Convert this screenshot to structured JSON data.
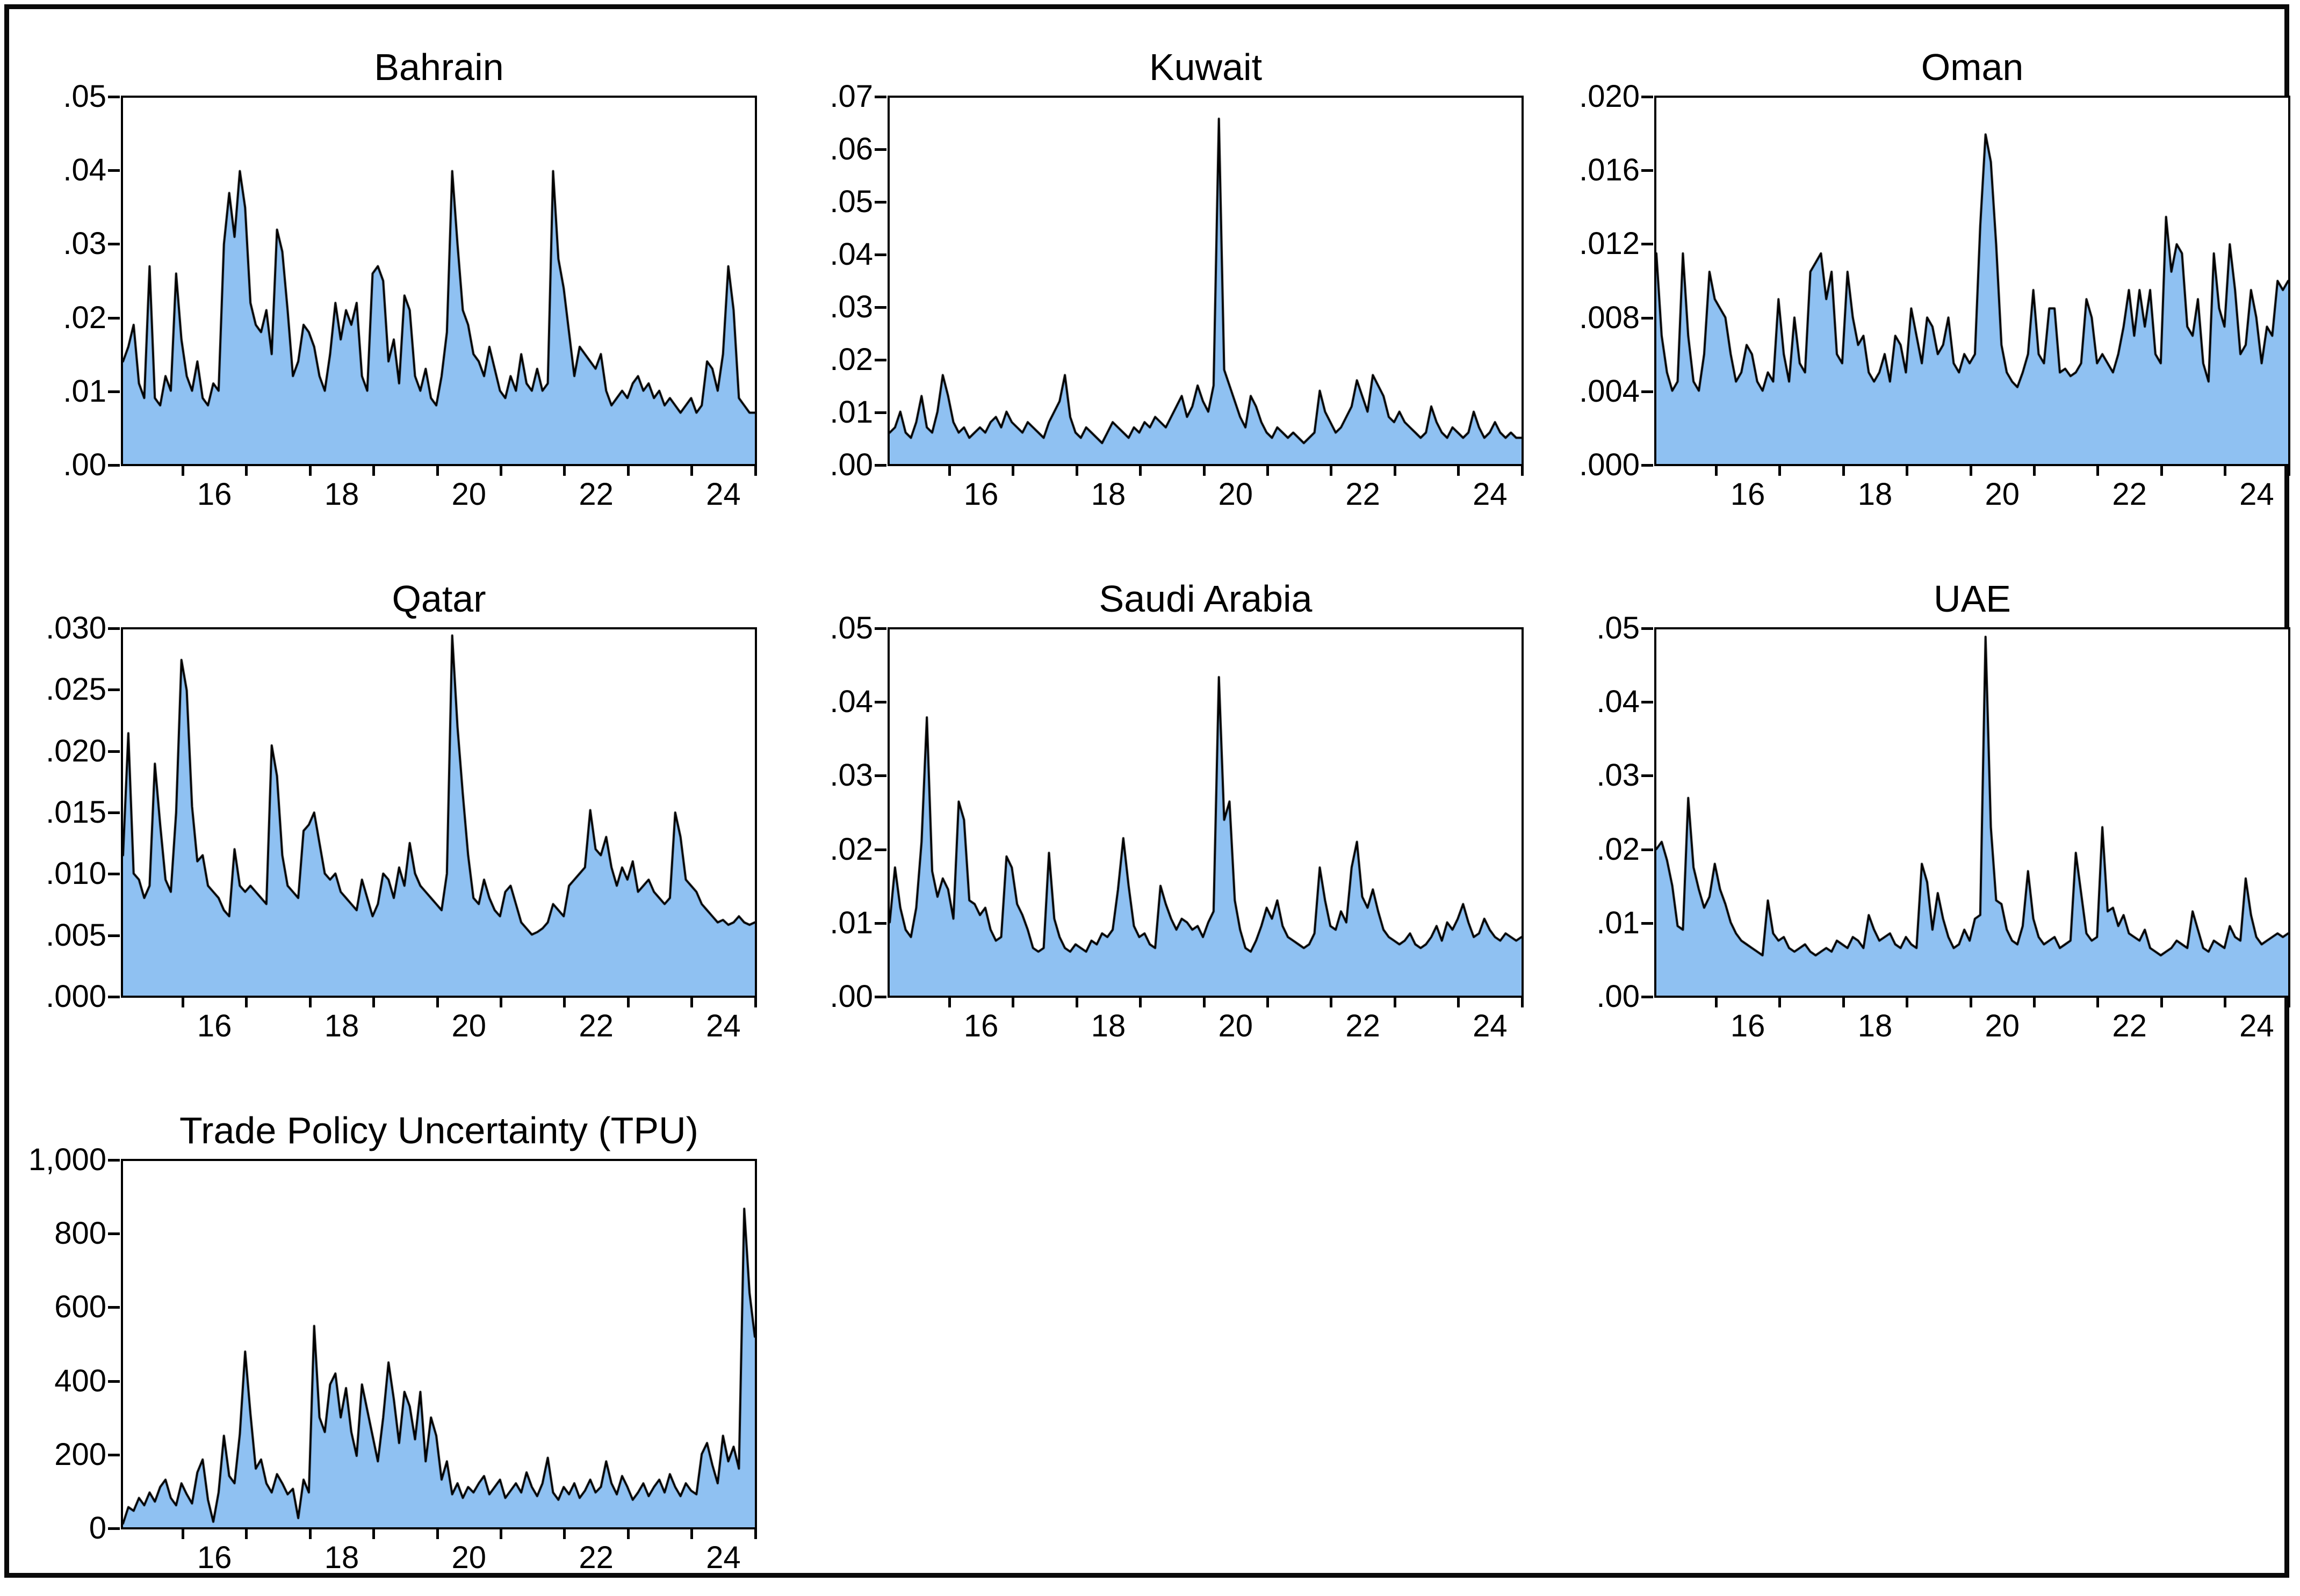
{
  "figure": {
    "kind": "eviews-style multi-panel area chart grid",
    "panel_titles": [
      "Bahrain",
      "Kuwait",
      "Oman",
      "Qatar",
      "Saudi Arabia",
      "UAE",
      "Trade Policy Uncertainty (TPU)"
    ]
  },
  "style": {
    "area_fill": "#8FC1F2",
    "series_line": "#000000",
    "frame_color": "#000000",
    "text_color": "#000000",
    "page_background": "#FFFFFF",
    "outer_border": "#0A0A0A"
  },
  "chart_data": [
    {
      "type": "area",
      "title": "Bahrain",
      "ylim": [
        0,
        0.05
      ],
      "y_tick_labels": [
        ".00",
        ".01",
        ".02",
        ".03",
        ".04",
        ".05"
      ],
      "x_tick_labels": [
        "16",
        "18",
        "20",
        "22",
        "24"
      ],
      "x_range": [
        2014.6,
        2024.5
      ],
      "grid": "off",
      "values": [
        0.014,
        0.016,
        0.019,
        0.011,
        0.009,
        0.027,
        0.009,
        0.008,
        0.012,
        0.01,
        0.026,
        0.017,
        0.012,
        0.01,
        0.014,
        0.009,
        0.008,
        0.011,
        0.01,
        0.03,
        0.037,
        0.031,
        0.04,
        0.035,
        0.022,
        0.019,
        0.018,
        0.021,
        0.015,
        0.032,
        0.029,
        0.021,
        0.012,
        0.014,
        0.019,
        0.018,
        0.016,
        0.012,
        0.01,
        0.015,
        0.022,
        0.017,
        0.021,
        0.019,
        0.022,
        0.012,
        0.01,
        0.026,
        0.027,
        0.025,
        0.014,
        0.017,
        0.011,
        0.023,
        0.021,
        0.012,
        0.01,
        0.013,
        0.009,
        0.008,
        0.012,
        0.018,
        0.04,
        0.03,
        0.021,
        0.019,
        0.015,
        0.014,
        0.012,
        0.016,
        0.013,
        0.01,
        0.009,
        0.012,
        0.01,
        0.015,
        0.011,
        0.01,
        0.013,
        0.01,
        0.011,
        0.04,
        0.028,
        0.024,
        0.018,
        0.012,
        0.016,
        0.015,
        0.014,
        0.013,
        0.015,
        0.01,
        0.008,
        0.009,
        0.01,
        0.009,
        0.011,
        0.012,
        0.01,
        0.011,
        0.009,
        0.01,
        0.008,
        0.009,
        0.008,
        0.007,
        0.008,
        0.009,
        0.007,
        0.008,
        0.014,
        0.013,
        0.01,
        0.015,
        0.027,
        0.021,
        0.009,
        0.008,
        0.007,
        0.007
      ]
    },
    {
      "type": "area",
      "title": "Kuwait",
      "ylim": [
        0,
        0.07
      ],
      "y_tick_labels": [
        ".00",
        ".01",
        ".02",
        ".03",
        ".04",
        ".05",
        ".06",
        ".07"
      ],
      "x_tick_labels": [
        "16",
        "18",
        "20",
        "22",
        "24"
      ],
      "x_range": [
        2014.6,
        2024.5
      ],
      "grid": "off",
      "values": [
        0.006,
        0.007,
        0.01,
        0.006,
        0.005,
        0.008,
        0.013,
        0.007,
        0.006,
        0.01,
        0.017,
        0.013,
        0.008,
        0.006,
        0.007,
        0.005,
        0.006,
        0.007,
        0.006,
        0.008,
        0.009,
        0.007,
        0.01,
        0.008,
        0.007,
        0.006,
        0.008,
        0.007,
        0.006,
        0.005,
        0.008,
        0.01,
        0.012,
        0.017,
        0.009,
        0.006,
        0.005,
        0.007,
        0.006,
        0.005,
        0.004,
        0.006,
        0.008,
        0.007,
        0.006,
        0.005,
        0.007,
        0.006,
        0.008,
        0.007,
        0.009,
        0.008,
        0.007,
        0.009,
        0.011,
        0.013,
        0.009,
        0.011,
        0.015,
        0.012,
        0.01,
        0.015,
        0.066,
        0.018,
        0.015,
        0.012,
        0.009,
        0.007,
        0.013,
        0.011,
        0.008,
        0.006,
        0.005,
        0.007,
        0.006,
        0.005,
        0.006,
        0.005,
        0.004,
        0.005,
        0.006,
        0.014,
        0.01,
        0.008,
        0.006,
        0.007,
        0.009,
        0.011,
        0.016,
        0.013,
        0.01,
        0.017,
        0.015,
        0.013,
        0.009,
        0.008,
        0.01,
        0.008,
        0.007,
        0.006,
        0.005,
        0.006,
        0.011,
        0.008,
        0.006,
        0.005,
        0.007,
        0.006,
        0.005,
        0.006,
        0.01,
        0.007,
        0.005,
        0.006,
        0.008,
        0.006,
        0.005,
        0.006,
        0.005,
        0.005
      ]
    },
    {
      "type": "area",
      "title": "Oman",
      "ylim": [
        0,
        0.02
      ],
      "y_tick_labels": [
        ".000",
        ".004",
        ".008",
        ".012",
        ".016",
        ".020"
      ],
      "x_tick_labels": [
        "16",
        "18",
        "20",
        "22",
        "24"
      ],
      "x_range": [
        2014.6,
        2024.5
      ],
      "grid": "off",
      "values": [
        0.0115,
        0.007,
        0.005,
        0.004,
        0.0045,
        0.0115,
        0.007,
        0.0045,
        0.004,
        0.006,
        0.0105,
        0.009,
        0.0085,
        0.008,
        0.006,
        0.0045,
        0.005,
        0.0065,
        0.006,
        0.0045,
        0.004,
        0.005,
        0.0045,
        0.009,
        0.006,
        0.0045,
        0.008,
        0.0055,
        0.005,
        0.0105,
        0.011,
        0.0115,
        0.009,
        0.0105,
        0.006,
        0.0055,
        0.0105,
        0.008,
        0.0065,
        0.007,
        0.005,
        0.0045,
        0.005,
        0.006,
        0.0045,
        0.007,
        0.0065,
        0.005,
        0.0085,
        0.007,
        0.0055,
        0.008,
        0.0075,
        0.006,
        0.0065,
        0.008,
        0.0055,
        0.005,
        0.006,
        0.0055,
        0.006,
        0.013,
        0.018,
        0.0165,
        0.012,
        0.0065,
        0.005,
        0.0045,
        0.0042,
        0.005,
        0.006,
        0.0095,
        0.006,
        0.0055,
        0.0085,
        0.0085,
        0.005,
        0.0052,
        0.0048,
        0.005,
        0.0055,
        0.009,
        0.008,
        0.0055,
        0.006,
        0.0055,
        0.005,
        0.006,
        0.0075,
        0.0095,
        0.007,
        0.0095,
        0.0075,
        0.0095,
        0.006,
        0.0055,
        0.0135,
        0.0105,
        0.012,
        0.0115,
        0.0075,
        0.007,
        0.009,
        0.0055,
        0.0045,
        0.0115,
        0.0085,
        0.0075,
        0.012,
        0.0095,
        0.006,
        0.0065,
        0.0095,
        0.008,
        0.0055,
        0.0075,
        0.007,
        0.01,
        0.0095,
        0.01
      ]
    },
    {
      "type": "area",
      "title": "Qatar",
      "ylim": [
        0,
        0.03
      ],
      "y_tick_labels": [
        ".000",
        ".005",
        ".010",
        ".015",
        ".020",
        ".025",
        ".030"
      ],
      "x_tick_labels": [
        "16",
        "18",
        "20",
        "22",
        "24"
      ],
      "x_range": [
        2014.6,
        2024.5
      ],
      "grid": "off",
      "values": [
        0.0115,
        0.0215,
        0.01,
        0.0095,
        0.008,
        0.009,
        0.019,
        0.014,
        0.0095,
        0.0085,
        0.015,
        0.0275,
        0.025,
        0.0155,
        0.011,
        0.0115,
        0.009,
        0.0085,
        0.008,
        0.007,
        0.0065,
        0.012,
        0.009,
        0.0085,
        0.009,
        0.0085,
        0.008,
        0.0075,
        0.0205,
        0.018,
        0.0115,
        0.009,
        0.0085,
        0.008,
        0.0135,
        0.014,
        0.015,
        0.0125,
        0.01,
        0.0095,
        0.01,
        0.0085,
        0.008,
        0.0075,
        0.007,
        0.0095,
        0.008,
        0.0065,
        0.0075,
        0.01,
        0.0095,
        0.008,
        0.0105,
        0.009,
        0.0125,
        0.01,
        0.009,
        0.0085,
        0.008,
        0.0075,
        0.007,
        0.01,
        0.0295,
        0.022,
        0.0165,
        0.0115,
        0.008,
        0.0075,
        0.0095,
        0.008,
        0.007,
        0.0065,
        0.0085,
        0.009,
        0.0075,
        0.006,
        0.0055,
        0.005,
        0.0052,
        0.0055,
        0.006,
        0.0075,
        0.007,
        0.0065,
        0.009,
        0.0095,
        0.01,
        0.0105,
        0.0152,
        0.012,
        0.0115,
        0.013,
        0.0105,
        0.009,
        0.0105,
        0.0095,
        0.011,
        0.0085,
        0.009,
        0.0095,
        0.0085,
        0.008,
        0.0075,
        0.008,
        0.015,
        0.013,
        0.0095,
        0.009,
        0.0085,
        0.0075,
        0.007,
        0.0065,
        0.006,
        0.0062,
        0.0058,
        0.006,
        0.0065,
        0.006,
        0.0058,
        0.006
      ]
    },
    {
      "type": "area",
      "title": "Saudi Arabia",
      "ylim": [
        0,
        0.05
      ],
      "y_tick_labels": [
        ".00",
        ".01",
        ".02",
        ".03",
        ".04",
        ".05"
      ],
      "x_tick_labels": [
        "16",
        "18",
        "20",
        "22",
        "24"
      ],
      "x_range": [
        2014.6,
        2024.5
      ],
      "grid": "off",
      "values": [
        0.01,
        0.0175,
        0.012,
        0.009,
        0.008,
        0.012,
        0.021,
        0.038,
        0.017,
        0.0135,
        0.016,
        0.0145,
        0.0105,
        0.0265,
        0.024,
        0.013,
        0.0125,
        0.011,
        0.012,
        0.009,
        0.0075,
        0.008,
        0.019,
        0.0175,
        0.0125,
        0.011,
        0.009,
        0.0065,
        0.006,
        0.0065,
        0.0195,
        0.0105,
        0.008,
        0.0065,
        0.006,
        0.007,
        0.0065,
        0.006,
        0.0075,
        0.007,
        0.0085,
        0.008,
        0.009,
        0.0145,
        0.0215,
        0.015,
        0.0095,
        0.008,
        0.0085,
        0.007,
        0.0065,
        0.015,
        0.0125,
        0.0105,
        0.009,
        0.0105,
        0.01,
        0.009,
        0.0095,
        0.008,
        0.01,
        0.0115,
        0.0435,
        0.024,
        0.0265,
        0.013,
        0.009,
        0.0065,
        0.006,
        0.0075,
        0.0095,
        0.012,
        0.0105,
        0.013,
        0.0095,
        0.008,
        0.0075,
        0.007,
        0.0065,
        0.007,
        0.0085,
        0.0175,
        0.013,
        0.0095,
        0.009,
        0.0115,
        0.01,
        0.0175,
        0.021,
        0.0135,
        0.012,
        0.0145,
        0.0115,
        0.009,
        0.008,
        0.0075,
        0.007,
        0.0075,
        0.0085,
        0.007,
        0.0065,
        0.007,
        0.008,
        0.0095,
        0.0075,
        0.01,
        0.009,
        0.0105,
        0.0125,
        0.01,
        0.008,
        0.0085,
        0.0105,
        0.009,
        0.008,
        0.0075,
        0.0085,
        0.008,
        0.0075,
        0.008
      ]
    },
    {
      "type": "area",
      "title": "UAE",
      "ylim": [
        0,
        0.05
      ],
      "y_tick_labels": [
        ".00",
        ".01",
        ".02",
        ".03",
        ".04",
        ".05"
      ],
      "x_tick_labels": [
        "16",
        "18",
        "20",
        "22",
        "24"
      ],
      "x_range": [
        2014.6,
        2024.5
      ],
      "grid": "off",
      "values": [
        0.02,
        0.021,
        0.0185,
        0.015,
        0.0095,
        0.009,
        0.027,
        0.0175,
        0.0145,
        0.012,
        0.0135,
        0.018,
        0.0145,
        0.0125,
        0.01,
        0.0085,
        0.0075,
        0.007,
        0.0065,
        0.006,
        0.0055,
        0.013,
        0.0085,
        0.0075,
        0.008,
        0.0065,
        0.006,
        0.0065,
        0.007,
        0.006,
        0.0055,
        0.006,
        0.0065,
        0.006,
        0.0075,
        0.007,
        0.0065,
        0.008,
        0.0075,
        0.0065,
        0.011,
        0.009,
        0.0075,
        0.008,
        0.0085,
        0.007,
        0.0065,
        0.008,
        0.007,
        0.0065,
        0.018,
        0.0155,
        0.009,
        0.014,
        0.0105,
        0.008,
        0.0065,
        0.007,
        0.009,
        0.0075,
        0.0105,
        0.011,
        0.049,
        0.023,
        0.013,
        0.0125,
        0.009,
        0.0075,
        0.007,
        0.0095,
        0.017,
        0.0105,
        0.008,
        0.007,
        0.0075,
        0.008,
        0.0065,
        0.007,
        0.0075,
        0.0195,
        0.014,
        0.0085,
        0.0075,
        0.008,
        0.023,
        0.0115,
        0.012,
        0.0095,
        0.011,
        0.0085,
        0.008,
        0.0075,
        0.009,
        0.0065,
        0.006,
        0.0055,
        0.006,
        0.0065,
        0.0075,
        0.007,
        0.0065,
        0.0115,
        0.009,
        0.0065,
        0.006,
        0.0075,
        0.007,
        0.0065,
        0.0095,
        0.008,
        0.0075,
        0.016,
        0.011,
        0.008,
        0.007,
        0.0075,
        0.008,
        0.0085,
        0.008,
        0.0085
      ]
    },
    {
      "type": "area",
      "title": "Trade Policy Uncertainty (TPU)",
      "ylim": [
        0,
        1000
      ],
      "y_tick_labels": [
        "0",
        "200",
        "400",
        "600",
        "800",
        "1,000"
      ],
      "x_tick_labels": [
        "16",
        "18",
        "20",
        "22",
        "24"
      ],
      "x_range": [
        2014.6,
        2024.5
      ],
      "grid": "off",
      "values": [
        10,
        55,
        45,
        80,
        60,
        95,
        70,
        110,
        130,
        80,
        60,
        120,
        90,
        65,
        150,
        185,
        75,
        15,
        95,
        250,
        140,
        120,
        255,
        480,
        310,
        160,
        185,
        120,
        95,
        145,
        120,
        90,
        105,
        25,
        130,
        95,
        550,
        300,
        260,
        390,
        420,
        300,
        380,
        260,
        195,
        390,
        320,
        250,
        180,
        300,
        450,
        350,
        230,
        370,
        330,
        240,
        370,
        180,
        300,
        250,
        130,
        180,
        90,
        120,
        80,
        110,
        95,
        120,
        140,
        90,
        110,
        130,
        80,
        100,
        120,
        95,
        150,
        110,
        85,
        120,
        190,
        95,
        75,
        110,
        90,
        120,
        80,
        100,
        130,
        95,
        110,
        180,
        120,
        90,
        140,
        110,
        75,
        95,
        120,
        85,
        110,
        130,
        95,
        145,
        110,
        85,
        120,
        100,
        90,
        200,
        230,
        170,
        120,
        250,
        180,
        220,
        160,
        870,
        640,
        520
      ]
    }
  ]
}
